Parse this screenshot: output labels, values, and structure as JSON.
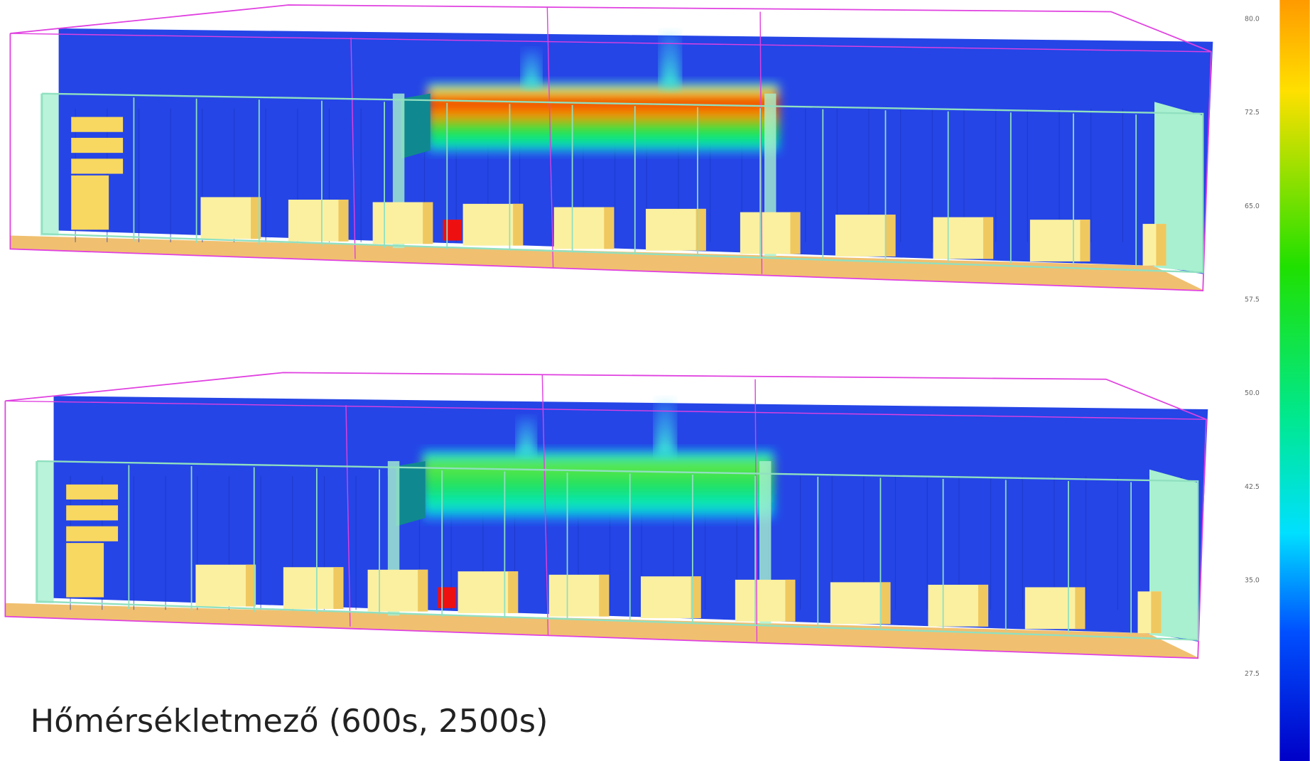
{
  "caption": "Hőmérsékletmező (600s, 2500s)",
  "colorbar": {
    "ticks": [
      "80.0",
      "72.5",
      "65.0",
      "57.5",
      "50.0",
      "42.5",
      "35.0",
      "27.5"
    ]
  }
}
